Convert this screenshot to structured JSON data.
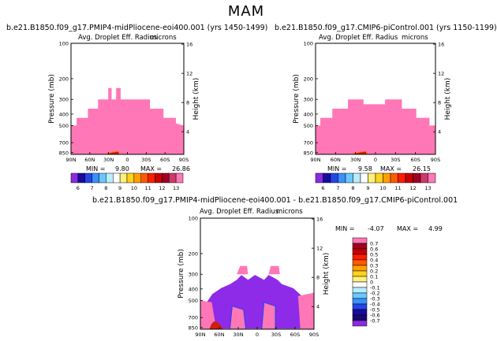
{
  "title": "MAM",
  "colors": {
    "pink": "#ff77b6",
    "purple": "#8d2be8",
    "deep_red": "#d11d0c",
    "axis": "#000000"
  },
  "chart_data": [
    {
      "type": "heatmap",
      "panel": "left",
      "title": "b.e21.B1850.f09_g17.PMIP4-midPliocene-eoi400.001  (yrs 1450-1499)",
      "subtitle": "Avg. Droplet Eff. Radius",
      "units": "microns",
      "xlabel": "",
      "ylabel": "Pressure (mb)",
      "y2label": "Height (km)",
      "x_ticks": [
        "90N",
        "60N",
        "30N",
        "0",
        "30S",
        "60S",
        "90S"
      ],
      "y_ticks": [
        "100",
        "200",
        "300",
        "400",
        "500",
        "700",
        "850"
      ],
      "y2_ticks": [
        "16",
        "12",
        "8",
        "4"
      ],
      "min_label": "MIN =",
      "min": "9.80",
      "max_label": "MAX =",
      "max": "26.86",
      "colorbar_labels": [
        "6",
        "7",
        "8",
        "9",
        "10",
        "11",
        "12",
        "13"
      ],
      "colorbar_colors": [
        "#8a2be2",
        "#1a0aa0",
        "#2446e8",
        "#3d8fff",
        "#69c8ff",
        "#b8ecff",
        "#ffffff",
        "#fff07a",
        "#ffd21e",
        "#ffa000",
        "#ff5a00",
        "#ff1e00",
        "#c80000",
        "#a00022",
        "#cc3a6b",
        "#ff77b6"
      ]
    },
    {
      "type": "heatmap",
      "panel": "right",
      "title": "b.e21.B1850.f09_g17.CMIP6-piControl.001  (yrs 1150-1199)",
      "subtitle": "Avg. Droplet Eff. Radius",
      "units": "microns",
      "xlabel": "",
      "ylabel": "Pressure (mb)",
      "y2label": "Height (km)",
      "x_ticks": [
        "90N",
        "60N",
        "30N",
        "0",
        "30S",
        "60S",
        "90S"
      ],
      "y_ticks": [
        "100",
        "200",
        "300",
        "400",
        "500",
        "700",
        "850"
      ],
      "y2_ticks": [
        "16",
        "12",
        "8",
        "4"
      ],
      "min_label": "MIN =",
      "min": "9.58",
      "max_label": "MAX =",
      "max": "26.15",
      "colorbar_labels": [
        "6",
        "7",
        "8",
        "9",
        "10",
        "11",
        "12",
        "13"
      ],
      "colorbar_colors": [
        "#8a2be2",
        "#1a0aa0",
        "#2446e8",
        "#3d8fff",
        "#69c8ff",
        "#b8ecff",
        "#ffffff",
        "#fff07a",
        "#ffd21e",
        "#ffa000",
        "#ff5a00",
        "#ff1e00",
        "#c80000",
        "#a00022",
        "#cc3a6b",
        "#ff77b6"
      ]
    },
    {
      "type": "heatmap",
      "panel": "difference",
      "title": "b.e21.B1850.f09_g17.PMIP4-midPliocene-eoi400.001  -  b.e21.B1850.f09_g17.CMIP6-piControl.001",
      "subtitle": "Avg. Droplet Eff. Radius",
      "units": "microns",
      "xlabel": "",
      "ylabel": "Pressure (mb)",
      "y2label": "Height (km)",
      "x_ticks": [
        "90N",
        "60N",
        "30N",
        "0",
        "30S",
        "60S",
        "90S"
      ],
      "y_ticks": [
        "100",
        "200",
        "300",
        "400",
        "500",
        "700",
        "850"
      ],
      "y2_ticks": [
        "16",
        "12",
        "8",
        "4"
      ],
      "min_label": "MIN =",
      "min": "-4.07",
      "max_label": "MAX =",
      "max": "4.99",
      "colorbar_labels": [
        "0.7",
        "0.6",
        "0.5",
        "0.4",
        "0.3",
        "0.2",
        "0.1",
        "0",
        "-0.1",
        "-0.2",
        "-0.3",
        "-0.4",
        "-0.5",
        "-0.6",
        "-0.7"
      ],
      "colorbar_colors": [
        "#ff77b6",
        "#a00022",
        "#c80000",
        "#ff1e00",
        "#ff5a00",
        "#ffa000",
        "#ffd21e",
        "#fff07a",
        "#ffffff",
        "#b8ecff",
        "#69c8ff",
        "#3d8fff",
        "#2446e8",
        "#1a0aa0",
        "#160a70",
        "#8a2be2"
      ]
    }
  ]
}
